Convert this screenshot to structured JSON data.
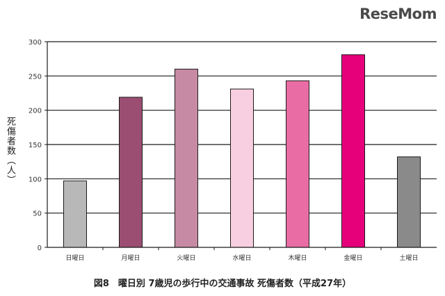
{
  "logo": {
    "text": "ReseMom"
  },
  "chart_data": {
    "type": "bar",
    "title": "図8　曜日別 7歳児の歩行中の交通事故 死傷者数（平成27年）",
    "ylabel": "死傷者数（人）",
    "xlabel": "",
    "ylim": [
      0,
      300
    ],
    "yticks": [
      0,
      50,
      100,
      150,
      200,
      250,
      300
    ],
    "grid": true,
    "categories": [
      "日曜日",
      "月曜日",
      "火曜日",
      "水曜日",
      "木曜日",
      "金曜日",
      "土曜日"
    ],
    "values": [
      97,
      219,
      260,
      231,
      243,
      281,
      132
    ],
    "colors": [
      "#b8b8b8",
      "#9b4e72",
      "#c68aa4",
      "#f8cfe0",
      "#e96da4",
      "#e6007a",
      "#8a8a8a"
    ]
  }
}
